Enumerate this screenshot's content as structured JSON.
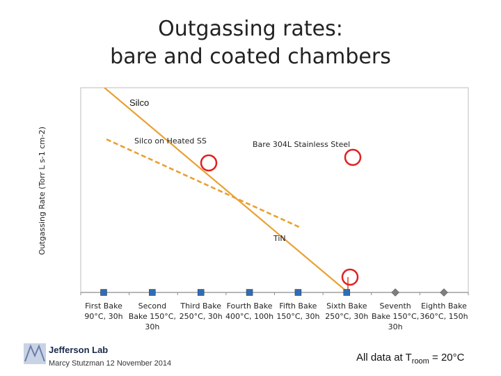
{
  "title": {
    "line1": "Outgassing rates:",
    "line2": "bare and coated chambers"
  },
  "chart_data": {
    "type": "line",
    "ylabel": "Outgassing Rate (Torr L s-1 cm-2)",
    "categories": [
      "First Bake 90°C, 30h",
      "Second Bake 150°C, 30h",
      "Third Bake 250°C, 30h",
      "Fourth Bake 400°C, 100h",
      "Fifth Bake 150°C, 30h",
      "Sixth Bake 250°C, 30h",
      "Seventh Bake 150°C, 30h",
      "Eighth Bake 360°C, 150h"
    ],
    "category_lines": [
      [
        "First Bake",
        "90°C, 30h"
      ],
      [
        "Second",
        "Bake 150°C,",
        "30h"
      ],
      [
        "Third Bake",
        "250°C, 30h"
      ],
      [
        "Fourth Bake",
        "400°C, 100h"
      ],
      [
        "Fifth Bake",
        "150°C, 30h"
      ],
      [
        "Sixth Bake",
        "250°C, 30h"
      ],
      [
        "Seventh",
        "Bake 150°C,",
        "30h"
      ],
      [
        "Eighth Bake",
        "360°C, 150h"
      ]
    ],
    "markers": [
      {
        "category": 0,
        "shape": "square",
        "color": "#2e6db4"
      },
      {
        "category": 1,
        "shape": "square",
        "color": "#2e6db4"
      },
      {
        "category": 2,
        "shape": "square",
        "color": "#2e6db4"
      },
      {
        "category": 3,
        "shape": "square",
        "color": "#2e6db4"
      },
      {
        "category": 4,
        "shape": "square",
        "color": "#2e6db4"
      },
      {
        "category": 5,
        "shape": "square",
        "color": "#2e6db4"
      },
      {
        "category": 6,
        "shape": "diamond",
        "color": "#7f7f7f"
      },
      {
        "category": 7,
        "shape": "diamond",
        "color": "#7f7f7f"
      }
    ],
    "annotations": {
      "silco": "Silco",
      "silco_heated": "Silco on Heated SS",
      "bare_ss": "Bare 304L Stainless Steel",
      "tin": "TiN"
    },
    "trend_color": "#e8a030",
    "circle_color": "#e02020",
    "grid": false
  },
  "footer": {
    "author": "Marcy Stutzman 12 November 2014",
    "logo_text": "Jefferson Lab",
    "room_prefix": "All data at T",
    "room_sub": "room",
    "room_suffix": " = 20°C"
  }
}
